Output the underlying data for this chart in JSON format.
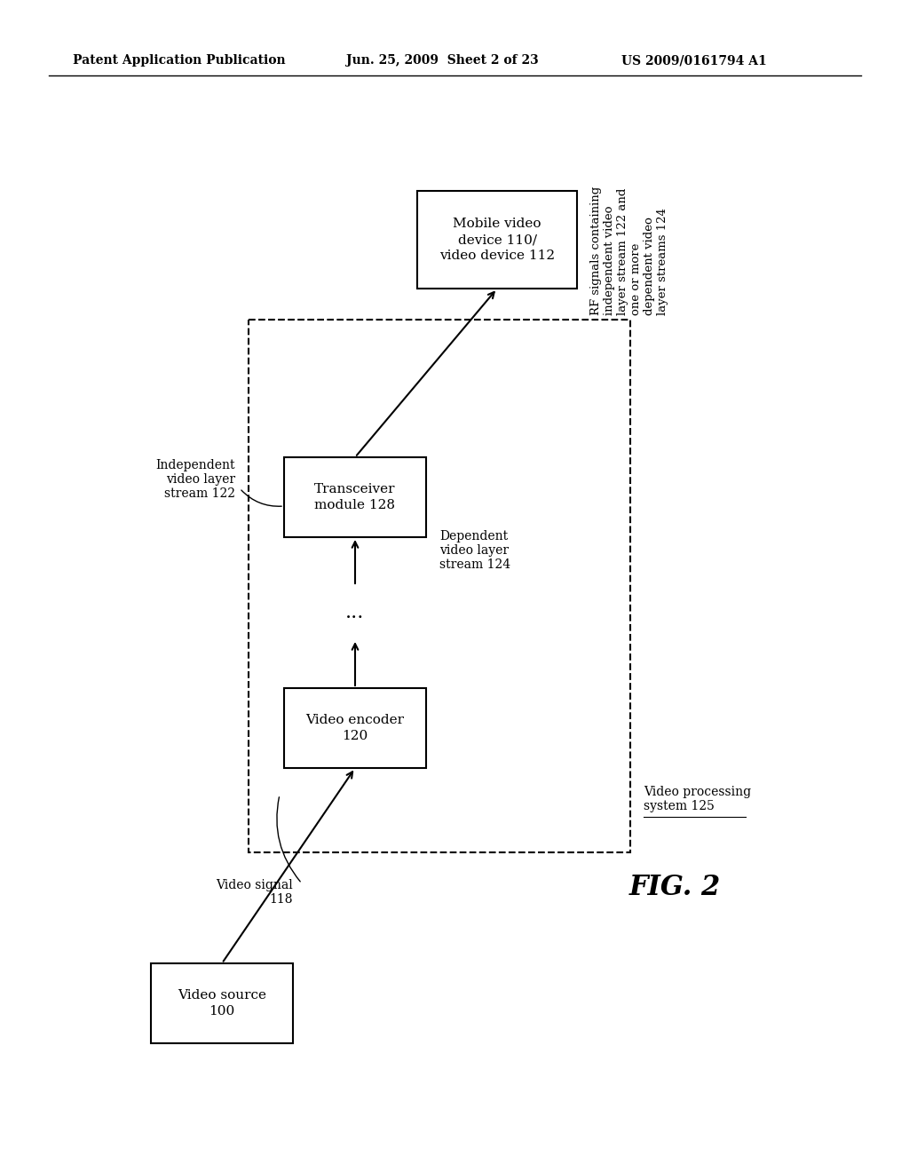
{
  "bg_color": "#ffffff",
  "header_left": "Patent Application Publication",
  "header_mid": "Jun. 25, 2009  Sheet 2 of 23",
  "header_right": "US 2009/0161794 A1",
  "fig_label": "FIG. 2",
  "label_video_processing": "Video processing\nsystem 125",
  "label_video_signal": "Video signal\n118",
  "label_independent": "Independent\nvideo layer\nstream 122",
  "label_dependent": "Dependent\nvideo layer\nstream 124",
  "label_rf": "RF signals containing\nindependent video\nlayer stream 122 and\none or more\ndependent video\nlayer streams 124"
}
